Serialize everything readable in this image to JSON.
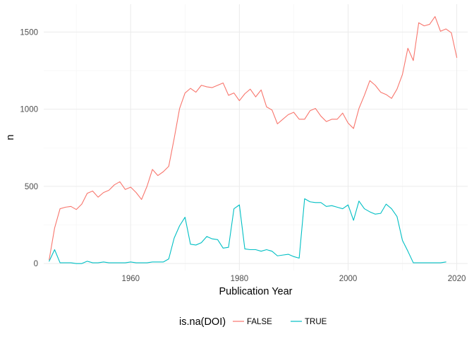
{
  "chart_data": {
    "type": "line",
    "xlabel": "Publication Year",
    "ylabel": "n",
    "xlim": [
      1944,
      2022
    ],
    "ylim": [
      -45,
      1680
    ],
    "x_ticks": [
      1960,
      1980,
      2000,
      2020
    ],
    "y_ticks": [
      0,
      500,
      1000,
      1500
    ],
    "x_tick_labels": [
      "1960",
      "1980",
      "2000",
      "2020"
    ],
    "y_tick_labels": [
      "0",
      "500",
      "1000",
      "1500"
    ],
    "grid": true,
    "legend": {
      "title": "is.na(DOI)",
      "position": "bottom"
    },
    "series": [
      {
        "name": "FALSE",
        "color": "#F8766D",
        "x": [
          1945,
          1946,
          1947,
          1948,
          1949,
          1950,
          1951,
          1952,
          1953,
          1954,
          1955,
          1956,
          1957,
          1958,
          1959,
          1960,
          1961,
          1962,
          1963,
          1964,
          1965,
          1966,
          1967,
          1968,
          1969,
          1970,
          1971,
          1972,
          1973,
          1974,
          1975,
          1976,
          1977,
          1978,
          1979,
          1980,
          1981,
          1982,
          1983,
          1984,
          1985,
          1986,
          1987,
          1988,
          1989,
          1990,
          1991,
          1992,
          1993,
          1994,
          1995,
          1996,
          1997,
          1998,
          1999,
          2000,
          2001,
          2002,
          2003,
          2004,
          2005,
          2006,
          2007,
          2008,
          2009,
          2010,
          2011,
          2012,
          2013,
          2014,
          2015,
          2016,
          2017,
          2018,
          2019,
          2020
        ],
        "y": [
          25,
          230,
          355,
          365,
          370,
          350,
          385,
          455,
          470,
          430,
          460,
          475,
          510,
          530,
          480,
          495,
          460,
          415,
          500,
          610,
          570,
          595,
          630,
          810,
          1005,
          1105,
          1135,
          1110,
          1155,
          1145,
          1140,
          1155,
          1170,
          1090,
          1105,
          1055,
          1100,
          1130,
          1080,
          1125,
          1015,
          995,
          905,
          935,
          965,
          980,
          935,
          935,
          990,
          1005,
          955,
          920,
          935,
          935,
          975,
          910,
          875,
          1005,
          1090,
          1185,
          1155,
          1110,
          1095,
          1070,
          1130,
          1225,
          1395,
          1315,
          1560,
          1540,
          1550,
          1600,
          1505,
          1520,
          1495,
          1335
        ]
      },
      {
        "name": "TRUE",
        "color": "#00BFC4",
        "x": [
          1945,
          1946,
          1947,
          1948,
          1949,
          1950,
          1951,
          1952,
          1953,
          1954,
          1955,
          1956,
          1957,
          1958,
          1959,
          1960,
          1961,
          1962,
          1963,
          1964,
          1965,
          1966,
          1967,
          1968,
          1969,
          1970,
          1971,
          1972,
          1973,
          1974,
          1975,
          1976,
          1977,
          1978,
          1979,
          1980,
          1981,
          1982,
          1983,
          1984,
          1985,
          1986,
          1987,
          1988,
          1989,
          1990,
          1991,
          1992,
          1993,
          1994,
          1995,
          1996,
          1997,
          1998,
          1999,
          2000,
          2001,
          2002,
          2003,
          2004,
          2005,
          2006,
          2007,
          2008,
          2009,
          2010,
          2011,
          2012,
          2013,
          2014,
          2015,
          2016,
          2017,
          2018
        ],
        "y": [
          15,
          90,
          5,
          5,
          5,
          0,
          0,
          15,
          5,
          5,
          10,
          5,
          5,
          5,
          5,
          10,
          5,
          5,
          5,
          10,
          10,
          10,
          30,
          165,
          245,
          300,
          125,
          120,
          135,
          175,
          160,
          155,
          100,
          105,
          355,
          380,
          95,
          90,
          90,
          80,
          90,
          80,
          50,
          55,
          60,
          45,
          35,
          420,
          400,
          395,
          395,
          370,
          375,
          365,
          355,
          380,
          280,
          405,
          355,
          335,
          320,
          325,
          385,
          355,
          305,
          150,
          80,
          5,
          5,
          5,
          5,
          5,
          5,
          10
        ]
      }
    ]
  }
}
